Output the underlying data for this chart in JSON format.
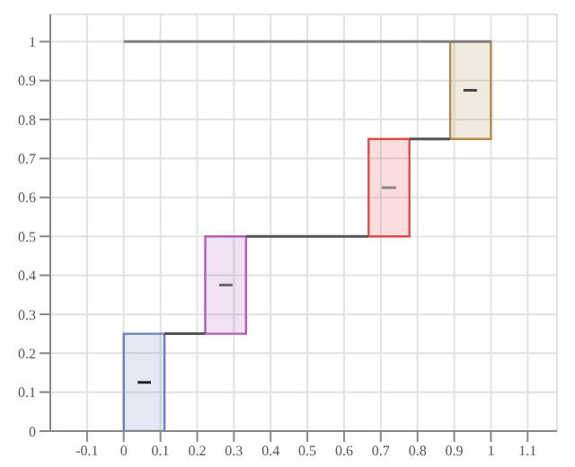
{
  "chart_data": {
    "type": "line",
    "xlim": [
      -0.2,
      1.18
    ],
    "ylim": [
      0,
      1.07
    ],
    "xticks": [
      -0.1,
      0,
      0.1,
      0.2,
      0.3,
      0.4,
      0.5,
      0.6,
      0.7,
      0.8,
      0.9,
      1,
      1.1
    ],
    "yticks": [
      0,
      0.1,
      0.2,
      0.3,
      0.4,
      0.5,
      0.6,
      0.7,
      0.8,
      0.9,
      1
    ],
    "grid": true,
    "marker": "none",
    "series": [
      {
        "color": "#808080",
        "x": [
          0,
          1
        ],
        "values": [
          1,
          1
        ]
      },
      {
        "color": "#555555",
        "x": [
          0.111,
          0.222,
          0.278,
          0.333,
          0.667,
          0.722,
          0.778,
          0.889
        ],
        "values": [
          0.25,
          0.25,
          null,
          0.5,
          0.5,
          null,
          0.75,
          0.75
        ]
      },
      {
        "type": "area",
        "color": "#6a7fc2",
        "x": [
          0,
          0,
          0.111,
          0.111,
          0
        ],
        "values": [
          0,
          0.25,
          0.25,
          0,
          0
        ]
      },
      {
        "type": "area",
        "color": "#b35cba",
        "x": [
          0.222,
          0.222,
          0.333,
          0.333,
          0.222
        ],
        "values": [
          0.25,
          0.5,
          0.5,
          0.25,
          0.25
        ]
      },
      {
        "type": "area",
        "color": "#e34a4a",
        "x": [
          0.667,
          0.667,
          0.778,
          0.778,
          0.667
        ],
        "values": [
          0.5,
          0.75,
          0.75,
          0.5,
          0.5
        ]
      },
      {
        "type": "area",
        "color": "#b38b4d",
        "x": [
          0.889,
          0.889,
          1,
          1,
          0.889
        ],
        "values": [
          0.75,
          1,
          1,
          0.75,
          0.75
        ]
      },
      {
        "color": "#222222",
        "x": [
          0.038,
          0.074
        ],
        "values": [
          0.125,
          0.125
        ]
      },
      {
        "color": "#666666",
        "x": [
          0.26,
          0.296
        ],
        "values": [
          0.375,
          0.375
        ]
      },
      {
        "color": "#888888",
        "x": [
          0.703,
          0.742
        ],
        "values": [
          0.625,
          0.625
        ]
      },
      {
        "color": "#444444",
        "x": [
          0.925,
          0.962
        ],
        "values": [
          0.875,
          0.875
        ]
      }
    ]
  }
}
